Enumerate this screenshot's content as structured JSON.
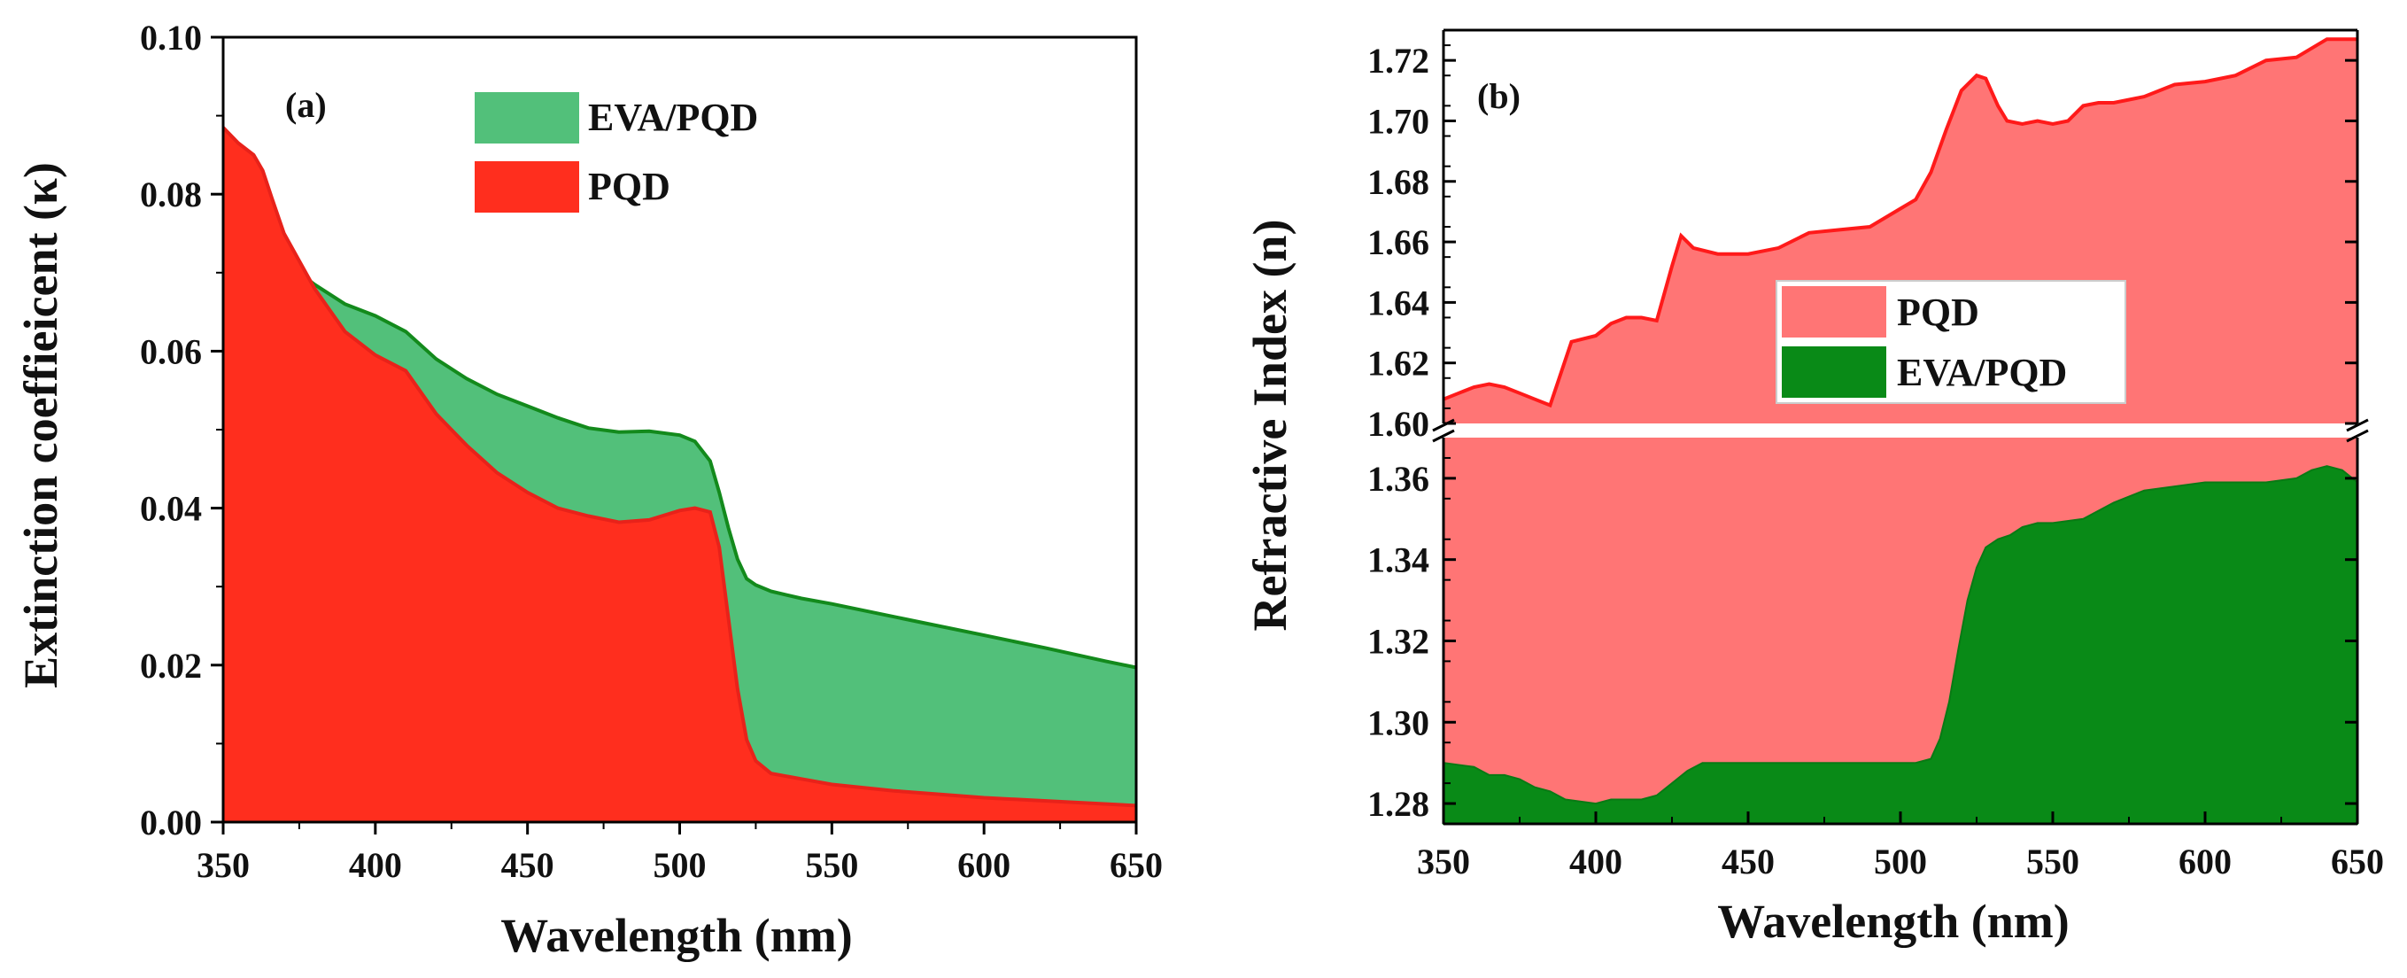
{
  "chart_data": [
    {
      "type": "area",
      "panel_label": "(a)",
      "xlabel": "Wavelength (nm)",
      "ylabel": "Extinction coeffieicent (κ)",
      "xlim": [
        350,
        650
      ],
      "ylim": [
        0,
        0.1
      ],
      "x_ticks": [
        "350",
        "400",
        "450",
        "500",
        "550",
        "600",
        "650"
      ],
      "y_ticks": [
        "0.00",
        "0.02",
        "0.04",
        "0.06",
        "0.08",
        "0.10"
      ],
      "legend_position": "top-center",
      "series": [
        {
          "name": "EVA/PQD",
          "fill_color": "#52c07a",
          "line_color": "#138a1c",
          "x": [
            350,
            355,
            360,
            365,
            370,
            375,
            380,
            390,
            400,
            410,
            420,
            430,
            440,
            450,
            460,
            470,
            480,
            490,
            500,
            505,
            510,
            513,
            516,
            519,
            522,
            525,
            530,
            540,
            550,
            560,
            580,
            600,
            620,
            640,
            650
          ],
          "y": [
            0.079,
            0.0785,
            0.0775,
            0.075,
            0.072,
            0.07,
            0.0685,
            0.066,
            0.0645,
            0.0625,
            0.059,
            0.0565,
            0.0545,
            0.053,
            0.0515,
            0.0502,
            0.0497,
            0.0498,
            0.0493,
            0.0485,
            0.046,
            0.042,
            0.0375,
            0.0335,
            0.031,
            0.0302,
            0.0294,
            0.0285,
            0.0278,
            0.027,
            0.0254,
            0.0238,
            0.0222,
            0.0205,
            0.0197
          ]
        },
        {
          "name": "PQD",
          "fill_color": "#ff2e1e",
          "line_color": "#e8221a",
          "x": [
            350,
            355,
            360,
            363,
            366,
            370,
            375,
            380,
            390,
            400,
            410,
            420,
            430,
            440,
            450,
            460,
            470,
            480,
            490,
            500,
            505,
            510,
            513,
            516,
            519,
            522,
            525,
            530,
            540,
            550,
            570,
            600,
            650
          ],
          "y": [
            0.0885,
            0.0865,
            0.085,
            0.083,
            0.0795,
            0.075,
            0.0715,
            0.068,
            0.0625,
            0.0595,
            0.0575,
            0.052,
            0.048,
            0.0445,
            0.042,
            0.04,
            0.039,
            0.0382,
            0.0385,
            0.0397,
            0.04,
            0.0395,
            0.035,
            0.026,
            0.017,
            0.0105,
            0.0078,
            0.0062,
            0.0055,
            0.0048,
            0.004,
            0.0031,
            0.0021
          ]
        }
      ]
    },
    {
      "type": "area",
      "panel_label": "(b)",
      "xlabel": "Wavelength (nm)",
      "ylabel": "Refractive Index (n)",
      "xlim": [
        350,
        650
      ],
      "broken_y_axis": true,
      "upper_ylim": [
        1.6,
        1.73
      ],
      "lower_ylim": [
        1.275,
        1.37
      ],
      "x_ticks": [
        "350",
        "400",
        "450",
        "500",
        "550",
        "600",
        "650"
      ],
      "upper_y_ticks": [
        "1.60",
        "1.62",
        "1.64",
        "1.66",
        "1.68",
        "1.70",
        "1.72"
      ],
      "lower_y_ticks": [
        "1.28",
        "1.30",
        "1.32",
        "1.34",
        "1.36"
      ],
      "legend_position": "center",
      "series": [
        {
          "name": "PQD",
          "fill_color": "#ff7575",
          "line_color": "#ff1a1a",
          "x": [
            350,
            355,
            360,
            365,
            370,
            375,
            380,
            385,
            392,
            400,
            405,
            410,
            415,
            420,
            425,
            428,
            432,
            440,
            450,
            460,
            470,
            480,
            490,
            500,
            505,
            510,
            515,
            520,
            525,
            528,
            532,
            535,
            540,
            545,
            550,
            555,
            560,
            565,
            570,
            580,
            590,
            600,
            610,
            620,
            630,
            640,
            650
          ],
          "y": [
            1.608,
            1.61,
            1.612,
            1.613,
            1.612,
            1.61,
            1.608,
            1.606,
            1.627,
            1.629,
            1.633,
            1.635,
            1.635,
            1.634,
            1.652,
            1.662,
            1.658,
            1.656,
            1.656,
            1.658,
            1.663,
            1.664,
            1.665,
            1.671,
            1.674,
            1.683,
            1.697,
            1.71,
            1.715,
            1.714,
            1.705,
            1.7,
            1.699,
            1.7,
            1.699,
            1.7,
            1.705,
            1.706,
            1.706,
            1.708,
            1.712,
            1.713,
            1.715,
            1.72,
            1.721,
            1.727,
            1.727
          ]
        },
        {
          "name": "EVA/PQD",
          "fill_color": "#098a17",
          "line_color": "#087a14",
          "x": [
            350,
            360,
            365,
            370,
            375,
            380,
            385,
            390,
            400,
            405,
            410,
            415,
            420,
            425,
            430,
            435,
            440,
            450,
            460,
            470,
            480,
            490,
            500,
            505,
            510,
            513,
            516,
            519,
            522,
            525,
            528,
            532,
            536,
            540,
            545,
            550,
            560,
            570,
            580,
            590,
            600,
            610,
            620,
            630,
            635,
            640,
            645,
            650
          ],
          "y": [
            1.29,
            1.289,
            1.287,
            1.287,
            1.286,
            1.284,
            1.283,
            1.281,
            1.28,
            1.281,
            1.281,
            1.281,
            1.282,
            1.285,
            1.288,
            1.29,
            1.29,
            1.29,
            1.29,
            1.29,
            1.29,
            1.29,
            1.29,
            1.29,
            1.291,
            1.296,
            1.305,
            1.318,
            1.33,
            1.338,
            1.343,
            1.345,
            1.346,
            1.348,
            1.349,
            1.349,
            1.35,
            1.354,
            1.357,
            1.358,
            1.359,
            1.359,
            1.359,
            1.36,
            1.362,
            1.363,
            1.362,
            1.359
          ]
        }
      ]
    }
  ]
}
